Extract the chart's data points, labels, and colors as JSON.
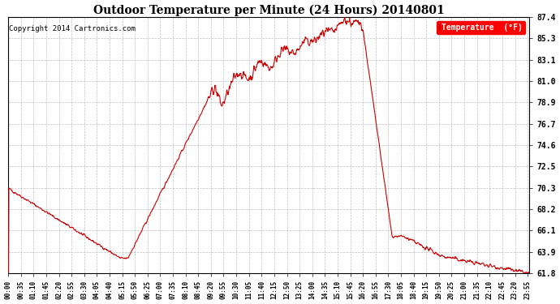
{
  "title": "Outdoor Temperature per Minute (24 Hours) 20140801",
  "copyright": "Copyright 2014 Cartronics.com",
  "legend_label": "Temperature  (°F)",
  "line_color": "#cc0000",
  "background_color": "#ffffff",
  "yticks": [
    61.8,
    63.9,
    66.1,
    68.2,
    70.3,
    72.5,
    74.6,
    76.7,
    78.9,
    81.0,
    83.1,
    85.3,
    87.4
  ],
  "ymin": 61.8,
  "ymax": 87.4,
  "total_minutes": 1440,
  "x_tick_minutes": [
    0,
    35,
    70,
    105,
    140,
    175,
    210,
    245,
    280,
    315,
    350,
    385,
    420,
    455,
    490,
    525,
    560,
    595,
    630,
    665,
    700,
    735,
    770,
    805,
    840,
    875,
    910,
    945,
    980,
    1015,
    1050,
    1085,
    1120,
    1155,
    1190,
    1225,
    1260,
    1295,
    1330,
    1365,
    1400,
    1435
  ],
  "x_tick_labels": [
    "00:00",
    "00:35",
    "01:10",
    "01:45",
    "02:20",
    "02:55",
    "03:30",
    "04:05",
    "04:40",
    "05:15",
    "05:50",
    "06:25",
    "07:00",
    "07:35",
    "08:10",
    "08:45",
    "09:20",
    "09:55",
    "10:30",
    "11:05",
    "11:40",
    "12:15",
    "12:50",
    "13:25",
    "14:00",
    "14:35",
    "15:10",
    "15:45",
    "16:20",
    "16:55",
    "17:30",
    "18:05",
    "18:40",
    "19:15",
    "19:50",
    "20:25",
    "21:00",
    "21:35",
    "22:10",
    "22:45",
    "23:20",
    "23:55"
  ]
}
